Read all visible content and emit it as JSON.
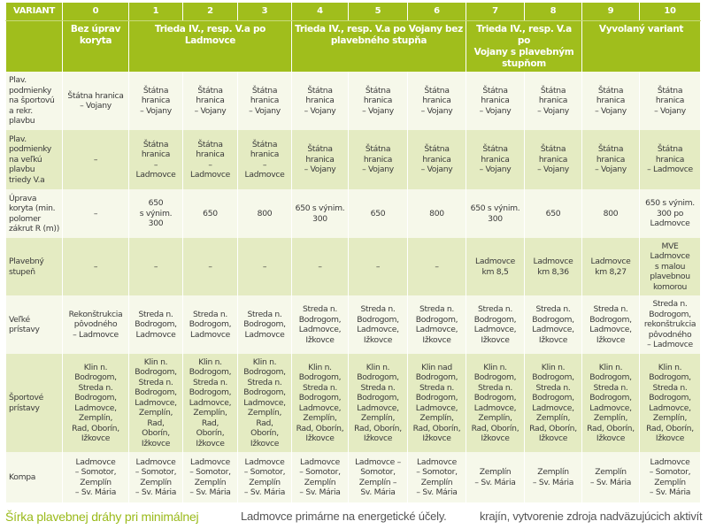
{
  "header": {
    "variant_label": "VARIANT",
    "variants": [
      "0",
      "1",
      "2",
      "3",
      "4",
      "5",
      "6",
      "7",
      "8",
      "9",
      "10"
    ],
    "groups": [
      "Bez úprav koryta",
      "Trieda IV., resp. V.a po Ladmovce",
      "Trieda IV., resp. V.a po Vojany bez plavebného stupňa",
      "Trieda IV., resp. V.a po\nVojany s plavebným\nstupňom",
      "Vyvolaný variant"
    ]
  },
  "rows": [
    {
      "label": "Plav.\npodmienky\nna športovú\na rekr.\nplavbu",
      "cells": [
        "Štátna hranica\n– Vojany",
        "Štátna\nhranica\n– Vojany",
        "Štátna\nhranica\n– Vojany",
        "Štátna\nhranica\n– Vojany",
        "Štátna\nhranica\n– Vojany",
        "Štátna\nhranica\n– Vojany",
        "Štátna\nhranica\n– Vojany",
        "Štátna\nhranica\n– Vojany",
        "Štátna\nhranica\n– Vojany",
        "Štátna\nhranica\n– Vojany",
        "Štátna\nhranica\n– Vojany"
      ]
    },
    {
      "label": "Plav.\npodmienky\nna veľkú\nplavbu\ntriedy V.a",
      "cells": [
        "–",
        "Štátna\nhranica\n–\nLadmovce",
        "Štátna\nhranica\n–\nLadmovce",
        "Štátna\nhranica\n–\nLadmovce",
        "Štátna\nhranica\n– Vojany",
        "Štátna\nhranica\n– Vojany",
        "Štátna\nhranica\n– Vojany",
        "Štátna\nhranica\n– Vojany",
        "Štátna\nhranica\n– Vojany",
        "Štátna\nhranica\n– Vojany",
        "Štátna\nhranica\n– Ladmovce"
      ]
    },
    {
      "label": "Úprava\nkoryta (min.\npolomer\nzákrut R (m))",
      "cells": [
        "–",
        "650\ns výnim.\n300",
        "650",
        "800",
        "650 s výnim.\n300",
        "650",
        "800",
        "650 s výnim.\n300",
        "650",
        "800",
        "650 s výnim.\n300 po\nLadmovce"
      ]
    },
    {
      "label": "Plavebný\nstupeň",
      "cells": [
        "–",
        "–",
        "–",
        "–",
        "–",
        "–",
        "–",
        "Ladmovce\nkm 8,5",
        "Ladmovce\nkm 8,36",
        "Ladmovce\nkm 8,27",
        "MVE\nLadmovce\ns malou\nplavebnou\nkomorou"
      ]
    },
    {
      "label": "Veľké\nprístavy",
      "cells": [
        "Rekonštrukcia\npôvodného\n– Ladmovce",
        "Streda n.\nBodrogom,\nLadmovce",
        "Streda n.\nBodrogom,\nLadmovce",
        "Streda n.\nBodrogom,\nLadmovce",
        "Streda n.\nBodrogom,\nLadmovce,\nIžkovce",
        "Streda n.\nBodrogom,\nLadmovce,\nIžkovce",
        "Streda n.\nBodrogom,\nLadmovce,\nIžkovce",
        "Streda n.\nBodrogom,\nLadmovce,\nIžkovce",
        "Streda n.\nBodrogom,\nLadmovce,\nIžkovce",
        "Streda n.\nBodrogom,\nLadmovce,\nIžkovce",
        "Streda n.\nBodrogom,\nrekonštrukcia\npôvodného\n– Ladmovce"
      ]
    },
    {
      "label": "Športové\nprístavy",
      "cells": [
        "Klin n.\nBodrogom,\nStreda n.\nBodrogom,\nLadmovce,\nZemplín,\nRad, Oborín,\nIžkovce",
        "Klin n.\nBodrogom,\nStreda n.\nBodrogom,\nLadmovce,\nZemplín,\nRad,\nOborín,\nIžkovce",
        "Klin n.\nBodrogom,\nStreda n.\nBodrogom,\nLadmovce,\nZemplín,\nRad,\nOborín,\nIžkovce",
        "Klin n.\nBodrogom,\nStreda n.\nBodrogom,\nLadmovce,\nZemplín,\nRad,\nOborín,\nIžkovce",
        "Klin n.\nBodrogom,\nStreda n.\nBodrogom,\nLadmovce,\nZemplín,\nRad, Oborín,\nIžkovce",
        "Klin n.\nBodrogom,\nStreda n.\nBodrogom,\nLadmovce,\nZemplín,\nRad, Oborín,\nIžkovce",
        "Klin nad\nBodrogom,\nStreda n.\nBodrogom,\nLadmovce,\nZemplín,\nRad, Oborín,\nIžkovce",
        "Klin n.\nBodrogom,\nStreda n.\nBodrogom,\nLadmovce,\nZemplín,\nRad, Oborín,\nIžkovce",
        "Klin n.\nBodrogom,\nStreda n.\nBodrogom,\nLadmovce,\nZemplín,\nRad, Oborín,\nIžkovce",
        "Klin n.\nBodrogom,\nStreda n.\nBodrogom,\nLadmovce,\nZemplín,\nRad, Oborín,\nIžkovce",
        "Klin n.\nBodrogom,\nStreda n.\nBodrogom,\nLadmovce,\nZemplín,\nRad, Oborín,\nIžkovce"
      ]
    },
    {
      "label": "Kompa",
      "cells": [
        "Ladmovce\n– Somotor,\nZemplín\n– Sv. Mária",
        "Ladmovce\n– Somotor,\nZemplín\n– Sv. Mária",
        "Ladmovce\n– Somotor,\nZemplín\n– Sv. Mária",
        "Ladmovce\n– Somotor,\nZemplín\n– Sv. Mária",
        "Ladmovce\n– Somotor,\nZemplín\n– Sv. Mária",
        "Ladmovce –\nSomotor,\nZemplín –\nSv. Mária",
        "Ladmovce\n– Somotor,\nZemplín\n– Sv. Mária",
        "Zemplín\n– Sv. Mária",
        "Zemplín\n– Sv. Mária",
        "Zemplín\n– Sv. Mária",
        "Ladmovce\n– Somotor,\nZemplín\n– Sv. Mária"
      ]
    }
  ],
  "footer": {
    "col1": "Šírka plavebnej dráhy pri minimálnej",
    "col2": "Ladmovce primárne na energetické účely.",
    "col3": "krajín, vytvorenie zdroja nadväzujúcich aktivít"
  },
  "colors": {
    "header": "#a0be1c",
    "row_light": "#f6f8ea",
    "row_dark": "#e4ebc2",
    "heading_green": "#9aba1a"
  }
}
